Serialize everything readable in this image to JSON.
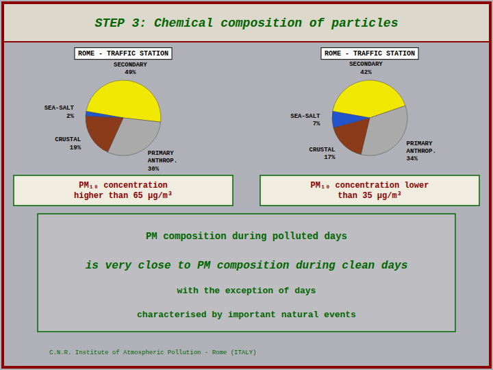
{
  "title": "STEP 3: Chemical composition of particles",
  "annotations": [
    "PM composition during polluted days",
    "is very close to PM composition during clean days",
    "with the exception of days",
    "characterised by important natural events",
    "C.N.R. Institute of Atmospheric Pollution - Rome (ITALY)"
  ],
  "chart_data": [
    {
      "type": "pie",
      "title": "ROME - TRAFFIC STATION",
      "subtitle": "PM₁₀ concentration\nhigher than 65 μg/m³",
      "categories": [
        "SECONDARY",
        "PRIMARY\nANTHROP.",
        "CRUSTAL",
        "SEA-SALT"
      ],
      "values": [
        49,
        30,
        19,
        2
      ],
      "value_labels": [
        "49%",
        "30%",
        "19%",
        "2%"
      ],
      "colors": [
        "#f0e800",
        "#aaaaaa",
        "#8b3a1a",
        "#2255cc"
      ],
      "data_labels": true
    },
    {
      "type": "pie",
      "title": "ROME - TRAFFIC STATION",
      "subtitle": "PM₁₀ concentration lower\nthan 35 μg/m³",
      "categories": [
        "SECONDARY",
        "PRIMARY\nANTHROP.",
        "CRUSTAL",
        "SEA-SALT"
      ],
      "values": [
        42,
        34,
        17,
        7
      ],
      "value_labels": [
        "42%",
        "34%",
        "17%",
        "7%"
      ],
      "colors": [
        "#f0e800",
        "#aaaaaa",
        "#8b3a1a",
        "#2255cc"
      ],
      "data_labels": true
    }
  ]
}
